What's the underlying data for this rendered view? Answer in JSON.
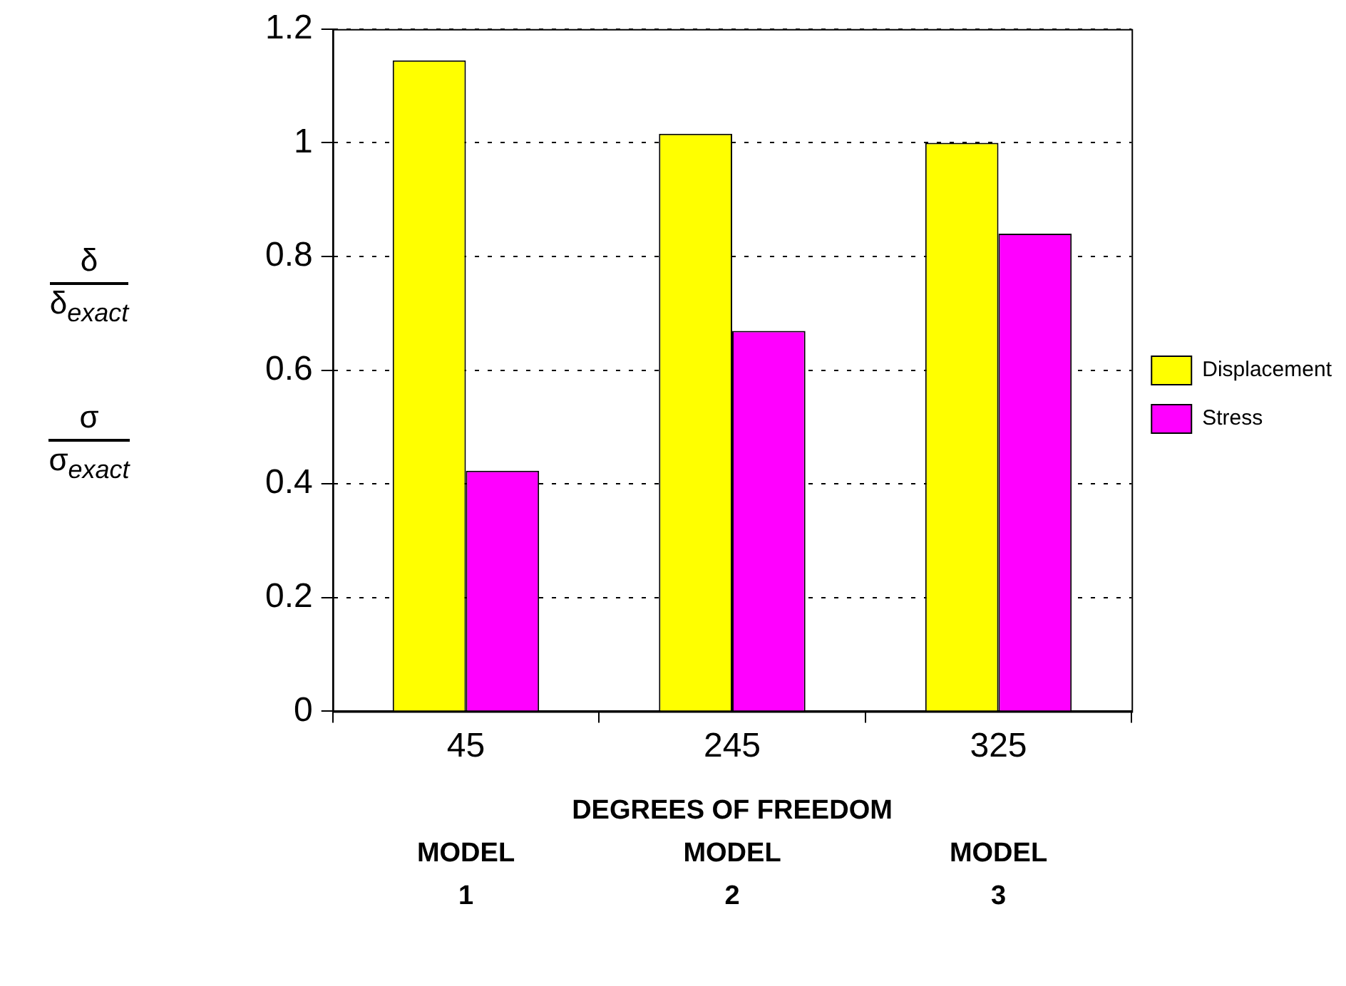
{
  "chart_data": {
    "type": "bar",
    "categories": [
      "45",
      "245",
      "325"
    ],
    "series": [
      {
        "name": "Displacement",
        "color": "#ffff00",
        "values": [
          1.145,
          1.016,
          1.0
        ]
      },
      {
        "name": "Stress",
        "color": "#ff00ff",
        "values": [
          0.423,
          0.669,
          0.84
        ]
      }
    ],
    "ylim": [
      0,
      1.2
    ],
    "yticks": [
      0,
      0.2,
      0.4,
      0.6,
      0.8,
      1,
      1.2
    ],
    "xlabel": "DEGREES OF FREEDOM",
    "ylabel": "δ\nδ$_{exact}$\nσ\nσ$_{exact}$",
    "annotations": [
      "MODEL\n1",
      "MODEL\n2",
      "MODEL\n3"
    ],
    "grid": "y",
    "legend": "right"
  }
}
